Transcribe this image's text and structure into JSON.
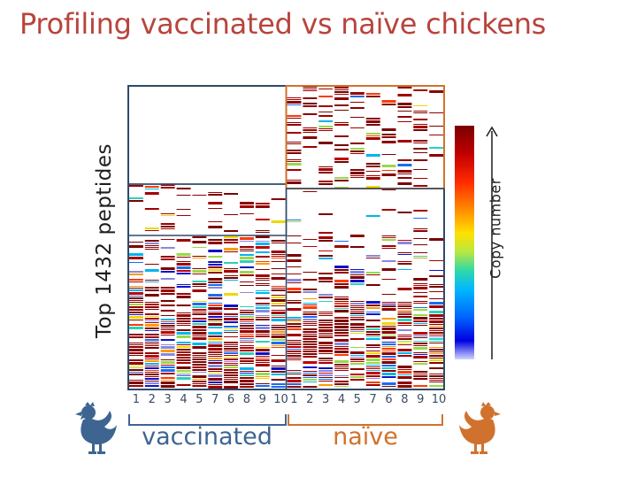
{
  "title": "Profiling vaccinated vs naïve chickens",
  "colors": {
    "title": "#b8443d",
    "vaccinated": "#3e6491",
    "naive": "#d0722e",
    "panel_border": "#2e4a6b"
  },
  "icons": {
    "vaccinated_icon": "chicken-icon-blue",
    "naive_icon": "chicken-icon-orange"
  },
  "chart_data": {
    "type": "heatmap",
    "ylabel": "Top 1432 peptides",
    "colorbar_label": "Copy number",
    "colorbar_direction": "increasing upward",
    "groups": [
      {
        "name": "vaccinated",
        "samples": [
          "1",
          "2",
          "3",
          "4",
          "5",
          "7",
          "6",
          "8",
          "9",
          "10"
        ]
      },
      {
        "name": "naïve",
        "samples": [
          "1",
          "2",
          "3",
          "4",
          "5",
          "7",
          "6",
          "8",
          "9",
          "10"
        ]
      }
    ],
    "highlighted_block": "naïve-enriched peptides (top right)"
  }
}
